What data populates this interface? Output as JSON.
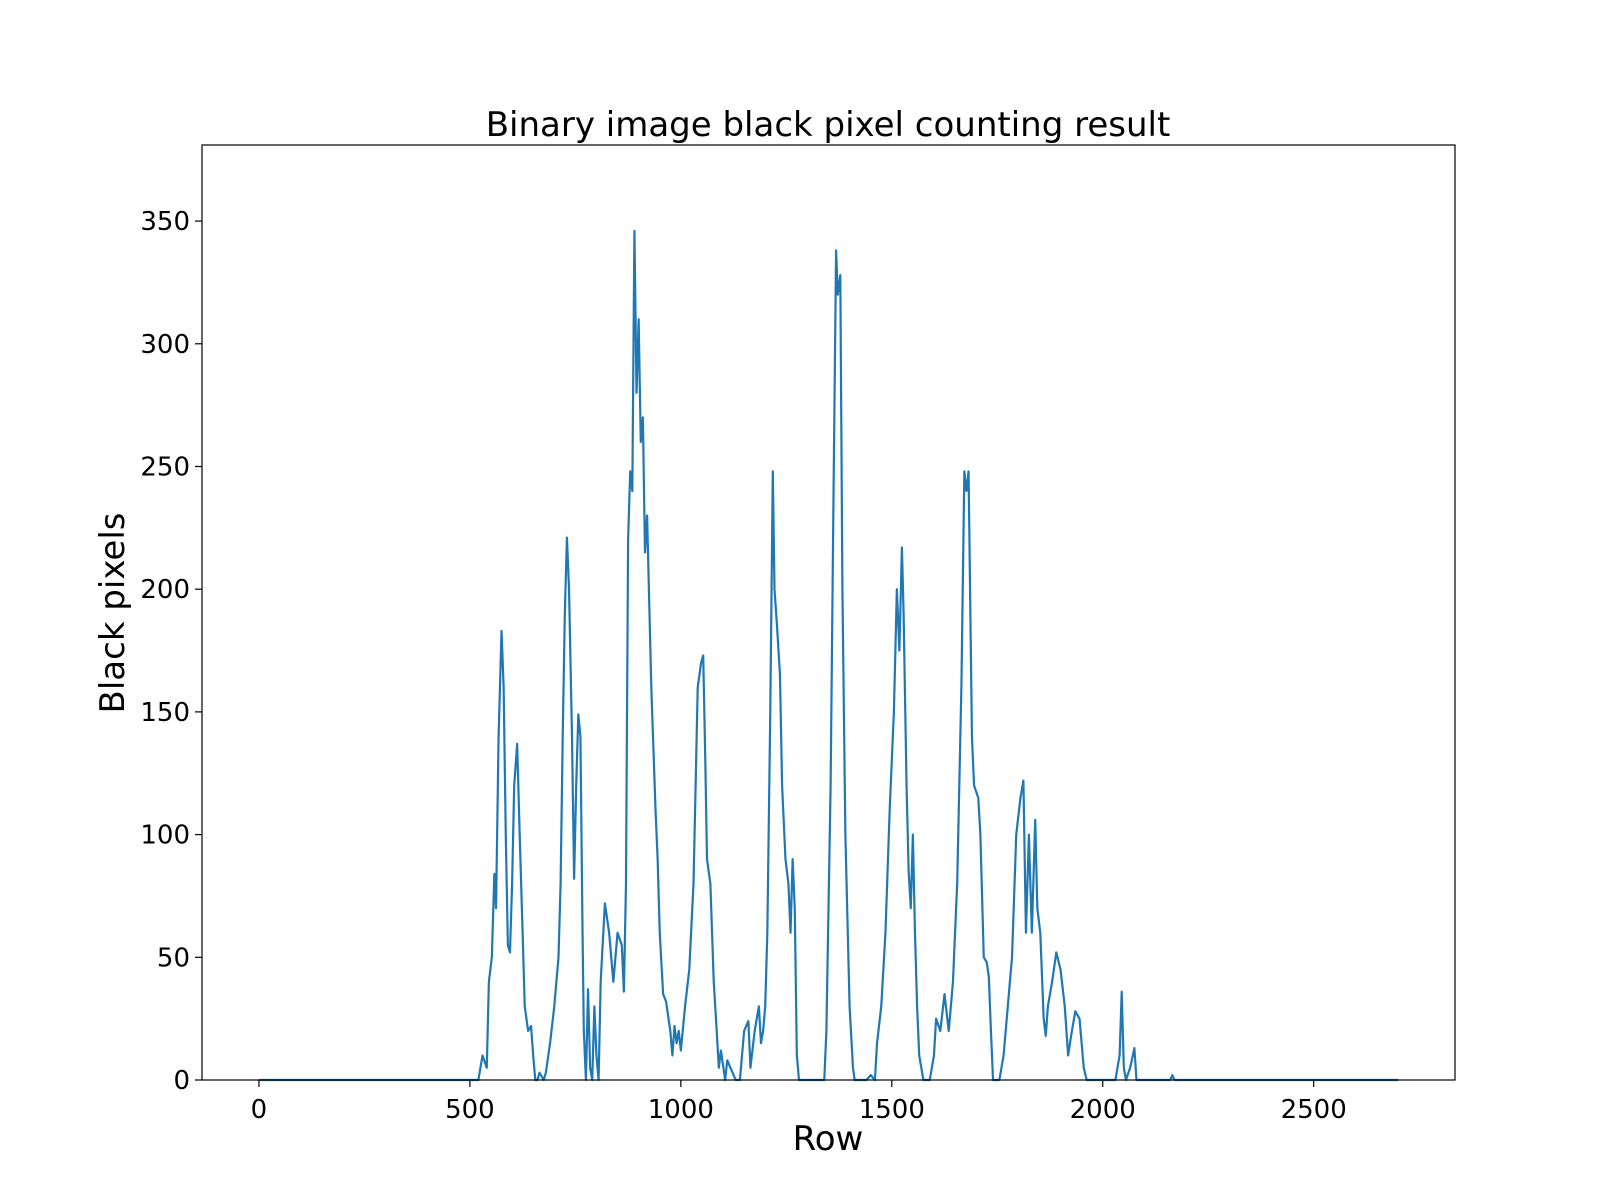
{
  "chart_data": {
    "type": "line",
    "title": "Binary image black pixel counting result",
    "x_label": "Row",
    "y_label": "Black pixels",
    "x": [
      0,
      520,
      530,
      540,
      545,
      552,
      558,
      562,
      568,
      575,
      580,
      585,
      590,
      595,
      600,
      605,
      612,
      618,
      625,
      630,
      638,
      645,
      650,
      655,
      660,
      665,
      675,
      680,
      690,
      700,
      710,
      715,
      720,
      725,
      730,
      735,
      742,
      747,
      752,
      757,
      762,
      767,
      770,
      775,
      780,
      785,
      790,
      795,
      800,
      805,
      810,
      820,
      830,
      840,
      850,
      860,
      865,
      870,
      875,
      880,
      885,
      890,
      895,
      900,
      905,
      910,
      915,
      920,
      930,
      940,
      945,
      950,
      958,
      965,
      975,
      980,
      985,
      990,
      995,
      1000,
      1010,
      1020,
      1030,
      1040,
      1048,
      1053,
      1058,
      1062,
      1070,
      1078,
      1085,
      1090,
      1095,
      1105,
      1110,
      1120,
      1130,
      1140,
      1150,
      1160,
      1165,
      1175,
      1185,
      1190,
      1195,
      1200,
      1205,
      1212,
      1218,
      1222,
      1228,
      1235,
      1240,
      1248,
      1255,
      1260,
      1265,
      1270,
      1275,
      1280,
      1340,
      1345,
      1355,
      1362,
      1368,
      1372,
      1378,
      1383,
      1390,
      1400,
      1408,
      1412,
      1440,
      1450,
      1460,
      1465,
      1475,
      1485,
      1495,
      1505,
      1512,
      1518,
      1524,
      1528,
      1535,
      1540,
      1545,
      1550,
      1555,
      1560,
      1565,
      1575,
      1590,
      1600,
      1605,
      1615,
      1625,
      1635,
      1645,
      1655,
      1665,
      1672,
      1677,
      1682,
      1690,
      1695,
      1705,
      1710,
      1718,
      1725,
      1730,
      1735,
      1740,
      1755,
      1765,
      1775,
      1785,
      1795,
      1805,
      1812,
      1818,
      1825,
      1832,
      1840,
      1845,
      1852,
      1860,
      1865,
      1870,
      1880,
      1890,
      1900,
      1910,
      1918,
      1925,
      1935,
      1945,
      1955,
      1962,
      2030,
      2040,
      2045,
      2050,
      2055,
      2065,
      2075,
      2080,
      2160,
      2165,
      2170,
      2700
    ],
    "series": [
      {
        "name": "Black pixels",
        "color": "#1f77b4",
        "values": [
          0,
          0,
          10,
          5,
          40,
          50,
          84,
          70,
          140,
          183,
          160,
          100,
          55,
          52,
          80,
          120,
          137,
          100,
          60,
          30,
          20,
          22,
          10,
          0,
          0,
          3,
          0,
          3,
          15,
          30,
          50,
          80,
          140,
          190,
          221,
          200,
          140,
          82,
          120,
          149,
          140,
          60,
          20,
          0,
          37,
          5,
          0,
          30,
          10,
          0,
          40,
          72,
          60,
          40,
          60,
          55,
          36,
          80,
          220,
          248,
          240,
          346,
          280,
          310,
          260,
          270,
          215,
          230,
          160,
          110,
          90,
          60,
          35,
          32,
          20,
          10,
          22,
          15,
          20,
          12,
          30,
          45,
          80,
          160,
          170,
          173,
          130,
          90,
          80,
          40,
          20,
          5,
          12,
          0,
          8,
          4,
          0,
          0,
          20,
          24,
          5,
          20,
          30,
          15,
          20,
          30,
          60,
          150,
          248,
          200,
          185,
          165,
          120,
          90,
          80,
          60,
          90,
          70,
          10,
          0,
          0,
          20,
          120,
          240,
          338,
          320,
          328,
          200,
          100,
          30,
          5,
          0,
          0,
          2,
          0,
          15,
          30,
          60,
          110,
          150,
          200,
          175,
          217,
          190,
          120,
          85,
          70,
          100,
          60,
          30,
          10,
          0,
          0,
          10,
          25,
          20,
          35,
          20,
          40,
          80,
          160,
          248,
          240,
          248,
          140,
          120,
          115,
          100,
          50,
          48,
          42,
          20,
          0,
          0,
          10,
          30,
          50,
          100,
          115,
          122,
          60,
          100,
          60,
          106,
          70,
          60,
          25,
          18,
          30,
          40,
          52,
          45,
          30,
          10,
          18,
          28,
          25,
          5,
          0,
          0,
          10,
          36,
          5,
          0,
          5,
          13,
          0,
          0,
          2,
          0,
          0
        ]
      }
    ],
    "xlim": [
      -135,
      2835
    ],
    "ylim": [
      0,
      381
    ],
    "xticks": [
      0,
      500,
      1000,
      1500,
      2000,
      2500
    ],
    "yticks": [
      0,
      50,
      100,
      150,
      200,
      250,
      300,
      350
    ]
  }
}
